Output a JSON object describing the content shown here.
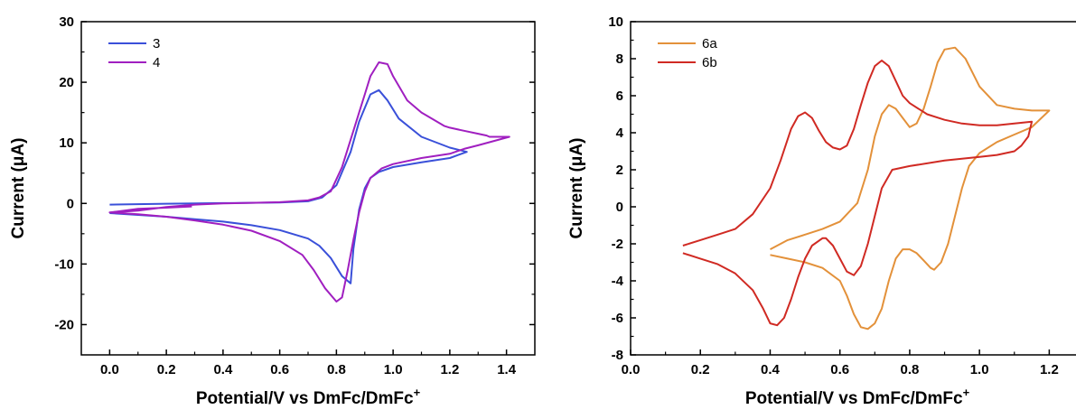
{
  "chart_data": [
    {
      "type": "line",
      "xlabel": "Potential/V vs DmFc/DmFc",
      "xlabel_sup": "+",
      "ylabel": "Current (μA)",
      "xlim": [
        -0.1,
        1.5
      ],
      "ylim": [
        -25,
        30
      ],
      "x_ticks": [
        0.0,
        0.2,
        0.4,
        0.6,
        0.8,
        1.0,
        1.2,
        1.4
      ],
      "x_tick_labels": [
        "0.0",
        "0.2",
        "0.4",
        "0.6",
        "0.8",
        "1.0",
        "1.2",
        "1.4"
      ],
      "y_ticks": [
        -20,
        -10,
        0,
        10,
        20,
        30
      ],
      "y_tick_labels": [
        "-20",
        "-10",
        "0",
        "10",
        "20",
        "30"
      ],
      "grid": false,
      "legend_position": "top-left",
      "series": [
        {
          "name": "3",
          "color": "#3a50d9",
          "x": [
            0.0,
            0.2,
            0.4,
            0.6,
            0.7,
            0.75,
            0.8,
            0.85,
            0.88,
            0.92,
            0.95,
            0.98,
            1.02,
            1.1,
            1.2,
            1.26,
            1.2,
            1.1,
            1.0,
            0.95,
            0.92,
            0.9,
            0.88,
            0.86,
            0.85,
            0.82,
            0.78,
            0.74,
            0.7,
            0.6,
            0.5,
            0.4,
            0.3,
            0.2,
            0.1,
            0.0
          ],
          "y": [
            -0.2,
            -0.05,
            0.05,
            0.15,
            0.35,
            1.0,
            3.0,
            8.5,
            13.5,
            18.0,
            18.7,
            17.0,
            14.0,
            11.0,
            9.2,
            8.5,
            7.5,
            6.8,
            6.0,
            5.2,
            4.2,
            2.5,
            -1.0,
            -7.5,
            -13.2,
            -12.0,
            -9.0,
            -7.0,
            -5.8,
            -4.4,
            -3.6,
            -3.0,
            -2.6,
            -2.2,
            -1.9,
            -1.6
          ]
        },
        {
          "name": "4",
          "color": "#a01fc0",
          "x": [
            0.29,
            0.2,
            0.1,
            0.0,
            0.1,
            0.2,
            0.3,
            0.4,
            0.5,
            0.6,
            0.7,
            0.74,
            0.78,
            0.8,
            0.82,
            0.84,
            0.86,
            0.88,
            0.9,
            0.92,
            0.95,
            0.98,
            1.0,
            1.05,
            1.1,
            1.18,
            1.2,
            1.25,
            1.3,
            1.33,
            1.34,
            1.38,
            1.41,
            1.3,
            1.25,
            1.2,
            1.1,
            1.0,
            0.96,
            0.92,
            0.9,
            0.88,
            0.86,
            0.84,
            0.82,
            0.8,
            0.76,
            0.72,
            0.68,
            0.6,
            0.5,
            0.4,
            0.3,
            0.2,
            0.1,
            0.0
          ],
          "y": [
            -0.5,
            -0.7,
            -0.9,
            -1.5,
            -1.2,
            -0.6,
            -0.2,
            0.0,
            0.1,
            0.2,
            0.5,
            1.0,
            2.0,
            4.0,
            6.0,
            9.0,
            12.0,
            15.0,
            18.0,
            21.0,
            23.3,
            23.0,
            21.0,
            17.0,
            15.0,
            12.8,
            12.5,
            12.0,
            11.5,
            11.2,
            11.0,
            11.0,
            11.0,
            9.6,
            9.0,
            8.2,
            7.5,
            6.5,
            5.8,
            4.2,
            2.0,
            -1.5,
            -6.0,
            -11.0,
            -15.5,
            -16.2,
            -14.0,
            -11.0,
            -8.5,
            -6.2,
            -4.5,
            -3.5,
            -2.8,
            -2.2,
            -1.8,
            -1.5
          ]
        }
      ]
    },
    {
      "type": "line",
      "xlabel": "Potential/V vs DmFc/DmFc",
      "xlabel_sup": "+",
      "ylabel": "Current (μA)",
      "xlim": [
        0.0,
        1.3
      ],
      "ylim": [
        -8,
        10
      ],
      "x_ticks": [
        0.0,
        0.2,
        0.4,
        0.6,
        0.8,
        1.0,
        1.2
      ],
      "x_tick_labels": [
        "0.0",
        "0.2",
        "0.4",
        "0.6",
        "0.8",
        "1.0",
        "1.2"
      ],
      "y_ticks": [
        -8,
        -6,
        -4,
        -2,
        0,
        2,
        4,
        6,
        8,
        10
      ],
      "y_tick_labels": [
        "-8",
        "-6",
        "-4",
        "-2",
        "0",
        "2",
        "4",
        "6",
        "8",
        "10"
      ],
      "grid": false,
      "legend_position": "top-left",
      "series": [
        {
          "name": "6a",
          "color": "#e3913a",
          "x": [
            0.4,
            0.45,
            0.5,
            0.55,
            0.6,
            0.65,
            0.68,
            0.7,
            0.72,
            0.74,
            0.76,
            0.78,
            0.8,
            0.82,
            0.84,
            0.86,
            0.88,
            0.9,
            0.93,
            0.96,
            1.0,
            1.05,
            1.1,
            1.15,
            1.2,
            1.15,
            1.1,
            1.05,
            1.0,
            0.97,
            0.95,
            0.93,
            0.91,
            0.89,
            0.87,
            0.86,
            0.84,
            0.82,
            0.8,
            0.78,
            0.76,
            0.74,
            0.72,
            0.7,
            0.68,
            0.66,
            0.64,
            0.62,
            0.6,
            0.55,
            0.5,
            0.45,
            0.4
          ],
          "y": [
            -2.3,
            -1.8,
            -1.5,
            -1.2,
            -0.8,
            0.2,
            2.0,
            3.8,
            5.0,
            5.5,
            5.3,
            4.8,
            4.3,
            4.5,
            5.3,
            6.5,
            7.8,
            8.5,
            8.6,
            8.0,
            6.5,
            5.5,
            5.3,
            5.2,
            5.2,
            4.3,
            3.9,
            3.5,
            2.9,
            2.2,
            1.0,
            -0.5,
            -2.0,
            -3.0,
            -3.4,
            -3.3,
            -2.9,
            -2.5,
            -2.3,
            -2.3,
            -2.8,
            -4.0,
            -5.5,
            -6.3,
            -6.6,
            -6.5,
            -5.8,
            -4.8,
            -4.0,
            -3.3,
            -3.0,
            -2.8,
            -2.6
          ]
        },
        {
          "name": "6b",
          "color": "#d02a23",
          "x": [
            0.15,
            0.2,
            0.25,
            0.3,
            0.35,
            0.4,
            0.43,
            0.46,
            0.48,
            0.5,
            0.52,
            0.54,
            0.56,
            0.58,
            0.6,
            0.62,
            0.64,
            0.66,
            0.68,
            0.7,
            0.72,
            0.74,
            0.76,
            0.78,
            0.8,
            0.85,
            0.9,
            0.95,
            1.0,
            1.05,
            1.1,
            1.15,
            1.14,
            1.12,
            1.1,
            1.05,
            1.0,
            0.95,
            0.9,
            0.8,
            0.75,
            0.72,
            0.7,
            0.68,
            0.66,
            0.64,
            0.62,
            0.6,
            0.58,
            0.56,
            0.55,
            0.52,
            0.5,
            0.48,
            0.46,
            0.44,
            0.42,
            0.4,
            0.38,
            0.35,
            0.3,
            0.25,
            0.2,
            0.15
          ],
          "y": [
            -2.1,
            -1.8,
            -1.5,
            -1.2,
            -0.4,
            1.0,
            2.5,
            4.2,
            4.9,
            5.1,
            4.8,
            4.1,
            3.5,
            3.2,
            3.1,
            3.3,
            4.2,
            5.5,
            6.7,
            7.6,
            7.9,
            7.6,
            6.8,
            6.0,
            5.6,
            5.0,
            4.7,
            4.5,
            4.4,
            4.4,
            4.5,
            4.6,
            3.8,
            3.3,
            3.0,
            2.8,
            2.7,
            2.6,
            2.5,
            2.2,
            2.0,
            1.0,
            -0.5,
            -2.0,
            -3.2,
            -3.7,
            -3.5,
            -2.8,
            -2.1,
            -1.7,
            -1.7,
            -2.1,
            -2.8,
            -3.8,
            -5.0,
            -6.0,
            -6.4,
            -6.3,
            -5.5,
            -4.5,
            -3.6,
            -3.1,
            -2.8,
            -2.5
          ]
        }
      ]
    }
  ]
}
